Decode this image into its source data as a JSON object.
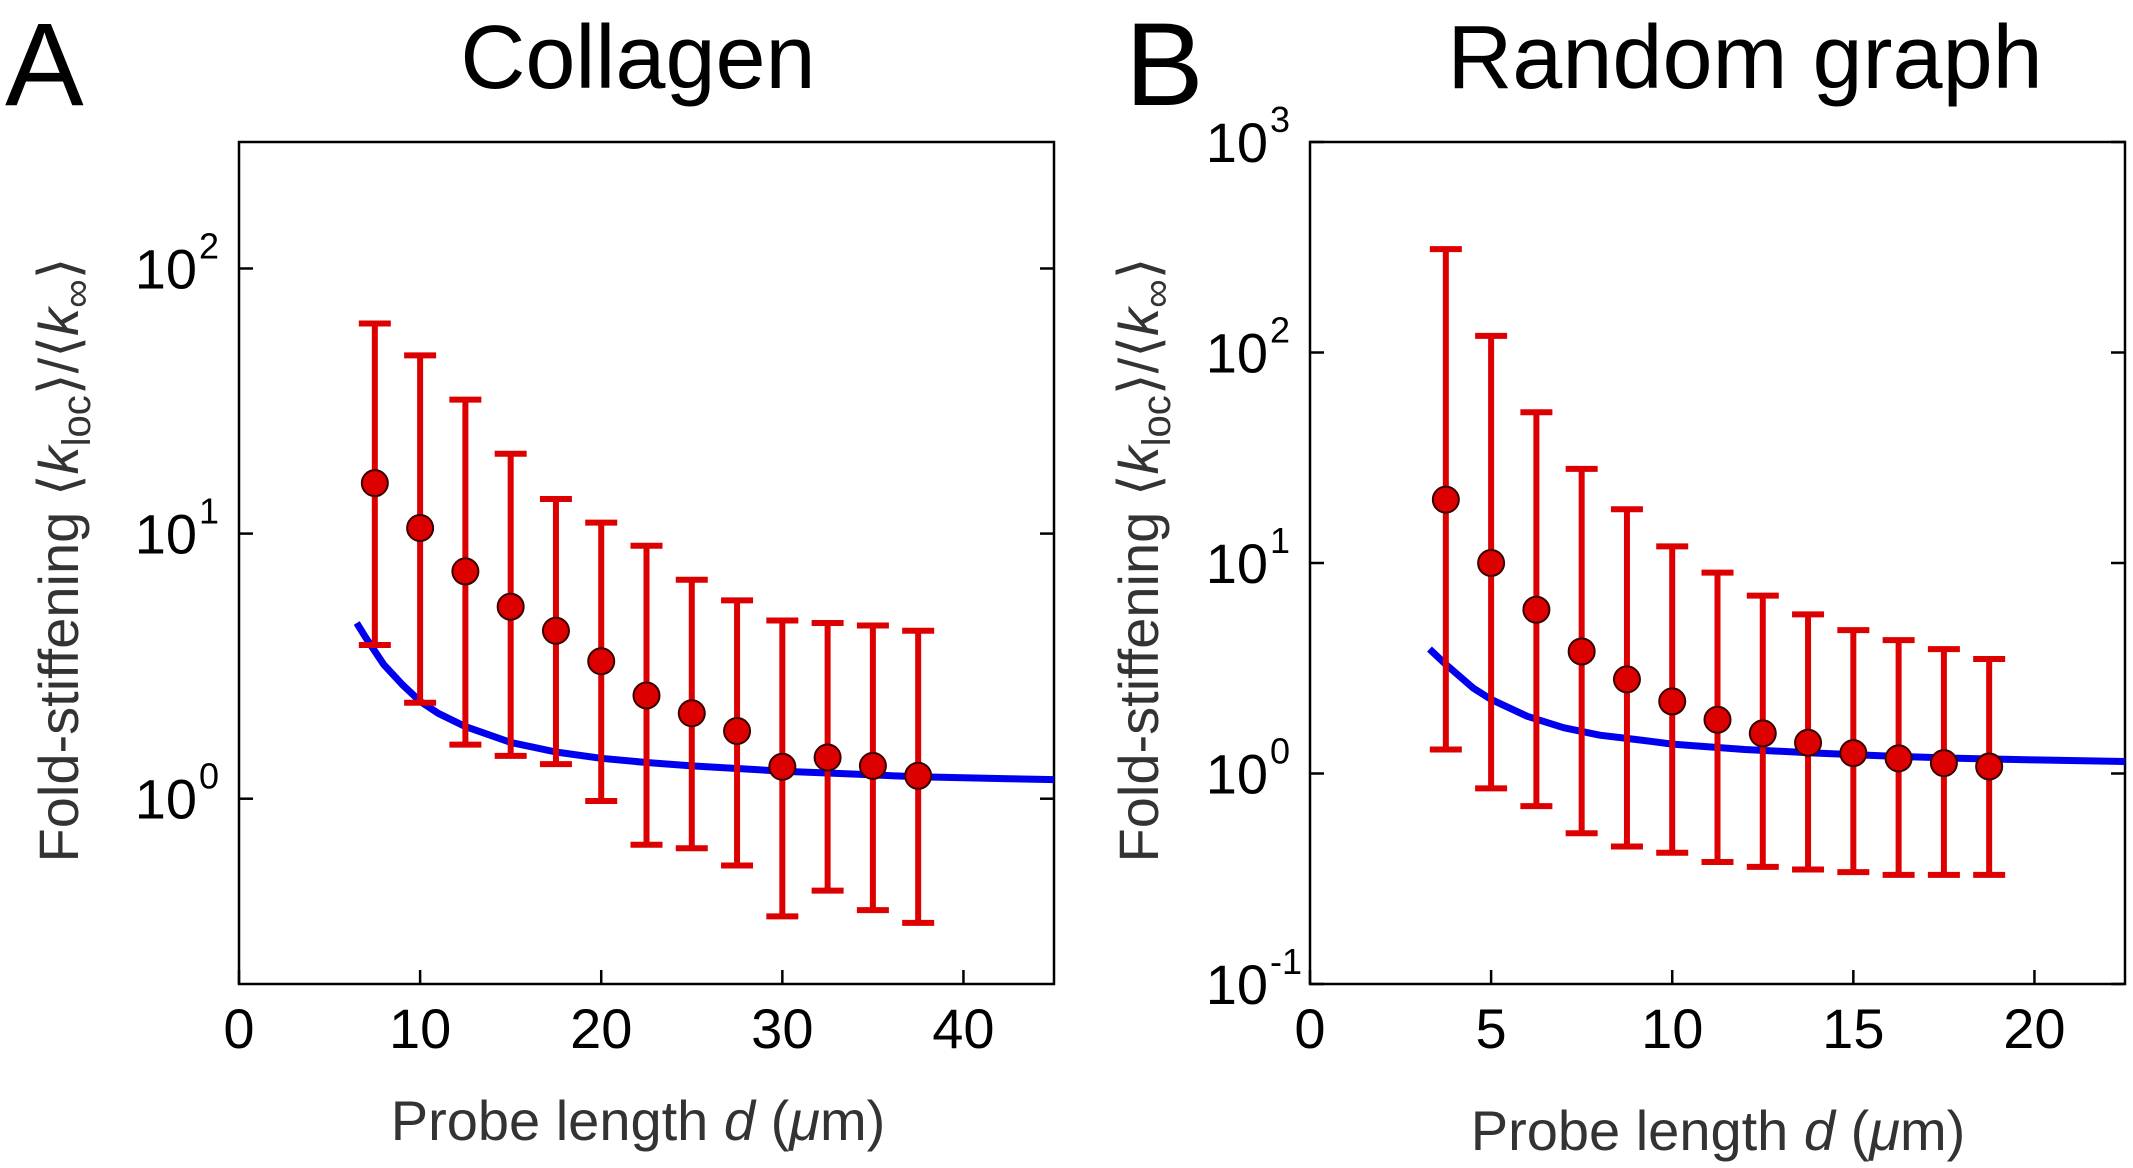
{
  "colors": {
    "points": "#dd0000",
    "error_bars": "#dd0000",
    "fit_curve": "#0000ee",
    "axes": "#000000"
  },
  "chart_data": [
    {
      "type": "scatter",
      "panel_letter": "A",
      "title": "Collagen",
      "xlabel": "Probe length d (μm)",
      "xlabel_parts": {
        "pre": "Probe length ",
        "var": "d",
        "post": " (",
        "mu": "μ",
        "unit": "m)"
      },
      "ylabel": "Fold-stiffening ⟨k_loc⟩/⟨k_∞⟩",
      "ylabel_parts": {
        "pre": "Fold-stiffening ⟨",
        "k": "k",
        "loc": "loc",
        "mid": "⟩/⟨",
        "k2": "k",
        "inf": "∞",
        "end": "⟩"
      },
      "y_scale": "log",
      "xlim": [
        0,
        45
      ],
      "ylim": [
        0.2,
        300
      ],
      "x_ticks": [
        0,
        10,
        20,
        30,
        40
      ],
      "x_tick_labels": [
        "0",
        "10",
        "20",
        "30",
        "40"
      ],
      "y_ticks": [
        {
          "value": 1,
          "base": "10",
          "exp": "0"
        },
        {
          "value": 10,
          "base": "10",
          "exp": "1"
        },
        {
          "value": 100,
          "base": "10",
          "exp": "2"
        }
      ],
      "series": [
        {
          "name": "Mean with error bars",
          "x": [
            7.5,
            10,
            12.5,
            15,
            17.5,
            20,
            22.5,
            25,
            27.5,
            30,
            32.5,
            35,
            37.5
          ],
          "y": [
            15.5,
            10.5,
            7.2,
            5.3,
            4.3,
            3.3,
            2.45,
            2.1,
            1.8,
            1.32,
            1.43,
            1.33,
            1.22
          ],
          "err_low": [
            3.8,
            2.3,
            1.6,
            1.45,
            1.35,
            0.98,
            0.67,
            0.65,
            0.56,
            0.36,
            0.45,
            0.38,
            0.34
          ],
          "err_high": [
            62,
            47,
            32,
            20,
            13.5,
            11,
            9,
            6.7,
            5.6,
            4.7,
            4.6,
            4.5,
            4.3
          ]
        },
        {
          "name": "Fit",
          "type": "line",
          "x": [
            6.5,
            7,
            8,
            9,
            10,
            11,
            12.5,
            15,
            17.5,
            20,
            22.5,
            25,
            27.5,
            30,
            32.5,
            35,
            37.5,
            40,
            42.5,
            45
          ],
          "y": [
            4.6,
            4.05,
            3.2,
            2.7,
            2.33,
            2.1,
            1.87,
            1.63,
            1.5,
            1.42,
            1.37,
            1.33,
            1.3,
            1.27,
            1.25,
            1.23,
            1.21,
            1.2,
            1.19,
            1.18
          ]
        }
      ]
    },
    {
      "type": "scatter",
      "panel_letter": "B",
      "title": "Random graph",
      "xlabel": "Probe length d (μm)",
      "xlabel_parts": {
        "pre": "Probe length ",
        "var": "d",
        "post": " (",
        "mu": "μ",
        "unit": "m)"
      },
      "ylabel": "Fold-stiffening ⟨k_loc⟩/⟨k_∞⟩",
      "ylabel_parts": {
        "pre": "Fold-stiffening ⟨",
        "k": "k",
        "loc": "loc",
        "mid": "⟩/⟨",
        "k2": "k",
        "inf": "∞",
        "end": "⟩"
      },
      "y_scale": "log",
      "xlim": [
        0,
        22.5
      ],
      "ylim": [
        0.1,
        1000
      ],
      "x_ticks": [
        0,
        5,
        10,
        15,
        20
      ],
      "x_tick_labels": [
        "0",
        "5",
        "10",
        "15",
        "20"
      ],
      "y_ticks": [
        {
          "value": 0.1,
          "base": "10",
          "exp": "-1"
        },
        {
          "value": 1,
          "base": "10",
          "exp": "0"
        },
        {
          "value": 10,
          "base": "10",
          "exp": "1"
        },
        {
          "value": 100,
          "base": "10",
          "exp": "2"
        },
        {
          "value": 1000,
          "base": "10",
          "exp": "3"
        }
      ],
      "series": [
        {
          "name": "Mean with error bars",
          "x": [
            3.75,
            5,
            6.25,
            7.5,
            8.75,
            10,
            11.25,
            12.5,
            13.75,
            15,
            16.25,
            17.5,
            18.75
          ],
          "y": [
            20,
            10,
            6,
            3.8,
            2.8,
            2.2,
            1.8,
            1.55,
            1.4,
            1.25,
            1.18,
            1.12,
            1.08
          ],
          "err_low": [
            1.3,
            0.85,
            0.7,
            0.52,
            0.45,
            0.42,
            0.38,
            0.36,
            0.35,
            0.34,
            0.33,
            0.33,
            0.33
          ],
          "err_high": [
            310,
            120,
            52,
            28,
            18,
            12,
            9,
            7,
            5.7,
            4.8,
            4.3,
            3.9,
            3.5
          ]
        },
        {
          "name": "Fit",
          "type": "line",
          "x": [
            3.3,
            3.75,
            4.5,
            5,
            6,
            7,
            8,
            9,
            10,
            12,
            14,
            16,
            18,
            20,
            22.5
          ],
          "y": [
            3.9,
            3.3,
            2.55,
            2.25,
            1.87,
            1.65,
            1.52,
            1.45,
            1.38,
            1.3,
            1.25,
            1.21,
            1.18,
            1.16,
            1.14
          ]
        }
      ]
    }
  ]
}
